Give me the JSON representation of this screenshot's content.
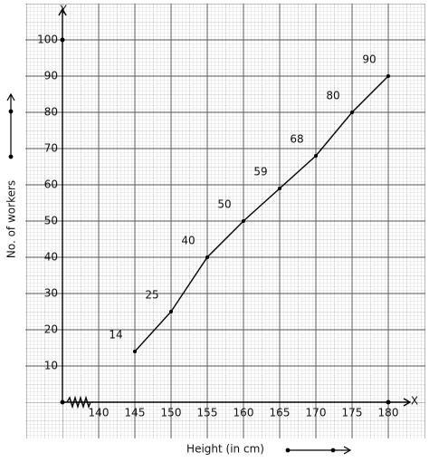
{
  "chart_data": {
    "type": "line",
    "x_label": "Height (in cm)",
    "y_label": "No. of workers",
    "x_axis_letter": "X",
    "y_axis_letter": "Y",
    "x": [
      145,
      150,
      155,
      160,
      165,
      170,
      175,
      180
    ],
    "series": [
      {
        "color": "#000000",
        "values": [
          14,
          25,
          40,
          50,
          59,
          68,
          80,
          90
        ]
      }
    ],
    "xlim": [
      135,
      183
    ],
    "ylim": [
      0,
      108
    ],
    "xticks": [
      140,
      145,
      150,
      155,
      160,
      165,
      170,
      175,
      180
    ],
    "yticks": [
      10,
      20,
      30,
      40,
      50,
      60,
      70,
      80,
      90,
      100
    ],
    "grid": true
  }
}
